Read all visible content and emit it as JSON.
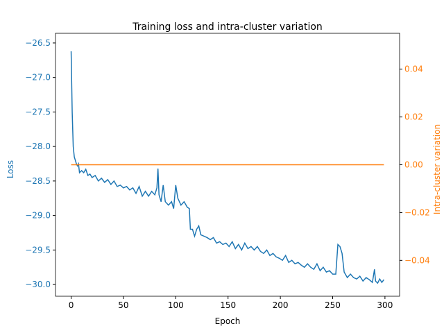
{
  "chart_data": {
    "type": "line",
    "title": "Training loss and intra-cluster variation",
    "x_label": "Epoch",
    "y_label": "Loss",
    "y2_label": "Intra-cluster variation",
    "xlim": [
      -14.95,
      314.0
    ],
    "xticks": [
      0,
      50,
      100,
      150,
      200,
      250,
      300
    ],
    "ylim": [
      -30.17,
      -26.36
    ],
    "yticks": [
      {
        "value": -30.0,
        "label": "−30.0"
      },
      {
        "value": -29.5,
        "label": "−29.5"
      },
      {
        "value": -29.0,
        "label": "−29.0"
      },
      {
        "value": -28.5,
        "label": "−28.5"
      },
      {
        "value": -28.0,
        "label": "−28.0"
      },
      {
        "value": -27.5,
        "label": "−27.5"
      },
      {
        "value": -27.0,
        "label": "−27.0"
      },
      {
        "value": -26.5,
        "label": "−26.5"
      }
    ],
    "y2lim": [
      -0.055,
      0.055
    ],
    "y2ticks": [
      {
        "value": -0.04,
        "label": "−0.04"
      },
      {
        "value": -0.02,
        "label": "−0.02"
      },
      {
        "value": 0,
        "label": "0.00"
      },
      0.02,
      0.04
    ],
    "series": [
      {
        "name": "Loss",
        "color": "#1f77b4",
        "axis": "y",
        "x": [
          0,
          1,
          2,
          3,
          5,
          6,
          7,
          8,
          10,
          12,
          14,
          16,
          18,
          20,
          23,
          26,
          29,
          32,
          35,
          38,
          41,
          44,
          47,
          50,
          53,
          56,
          59,
          62,
          65,
          68,
          71,
          74,
          77,
          80,
          82,
          83,
          84,
          86,
          88,
          90,
          93,
          96,
          98,
          100,
          102,
          105,
          108,
          111,
          113,
          114,
          116,
          118,
          120,
          122,
          124,
          127,
          130,
          133,
          136,
          139,
          142,
          145,
          148,
          151,
          154,
          157,
          160,
          163,
          166,
          169,
          172,
          175,
          178,
          181,
          184,
          187,
          190,
          193,
          196,
          199,
          202,
          205,
          208,
          211,
          214,
          217,
          220,
          223,
          226,
          229,
          232,
          235,
          238,
          241,
          244,
          247,
          250,
          253,
          255,
          257,
          259,
          261,
          264,
          267,
          270,
          273,
          276,
          279,
          282,
          285,
          288,
          290,
          291,
          293,
          295,
          297,
          299
        ],
        "values": [
          -26.62,
          -27.5,
          -28.0,
          -28.15,
          -28.25,
          -28.28,
          -28.25,
          -28.38,
          -28.35,
          -28.38,
          -28.33,
          -28.42,
          -28.4,
          -28.45,
          -28.42,
          -28.5,
          -28.46,
          -28.52,
          -28.48,
          -28.55,
          -28.5,
          -28.58,
          -28.56,
          -28.6,
          -28.58,
          -28.63,
          -28.6,
          -28.68,
          -28.58,
          -28.72,
          -28.65,
          -28.72,
          -28.65,
          -28.7,
          -28.6,
          -28.32,
          -28.7,
          -28.8,
          -28.56,
          -28.8,
          -28.85,
          -28.8,
          -28.9,
          -28.56,
          -28.75,
          -28.85,
          -28.8,
          -28.88,
          -28.9,
          -29.2,
          -29.2,
          -29.3,
          -29.2,
          -29.15,
          -29.28,
          -29.3,
          -29.32,
          -29.35,
          -29.32,
          -29.4,
          -29.38,
          -29.42,
          -29.4,
          -29.45,
          -29.38,
          -29.48,
          -29.42,
          -29.5,
          -29.4,
          -29.48,
          -29.45,
          -29.5,
          -29.45,
          -29.52,
          -29.55,
          -29.5,
          -29.58,
          -29.55,
          -29.6,
          -29.62,
          -29.65,
          -29.58,
          -29.68,
          -29.65,
          -29.7,
          -29.68,
          -29.72,
          -29.75,
          -29.7,
          -29.75,
          -29.78,
          -29.7,
          -29.8,
          -29.75,
          -29.82,
          -29.8,
          -29.85,
          -29.85,
          -29.42,
          -29.45,
          -29.55,
          -29.82,
          -29.9,
          -29.85,
          -29.9,
          -29.92,
          -29.88,
          -29.95,
          -29.9,
          -29.93,
          -29.97,
          -29.78,
          -29.95,
          -29.98,
          -29.92,
          -29.97,
          -29.93
        ]
      },
      {
        "name": "Intra-cluster variation",
        "color": "#ff7f0e",
        "axis": "y2",
        "x": [
          0,
          299
        ],
        "values": [
          0,
          0
        ]
      }
    ]
  }
}
